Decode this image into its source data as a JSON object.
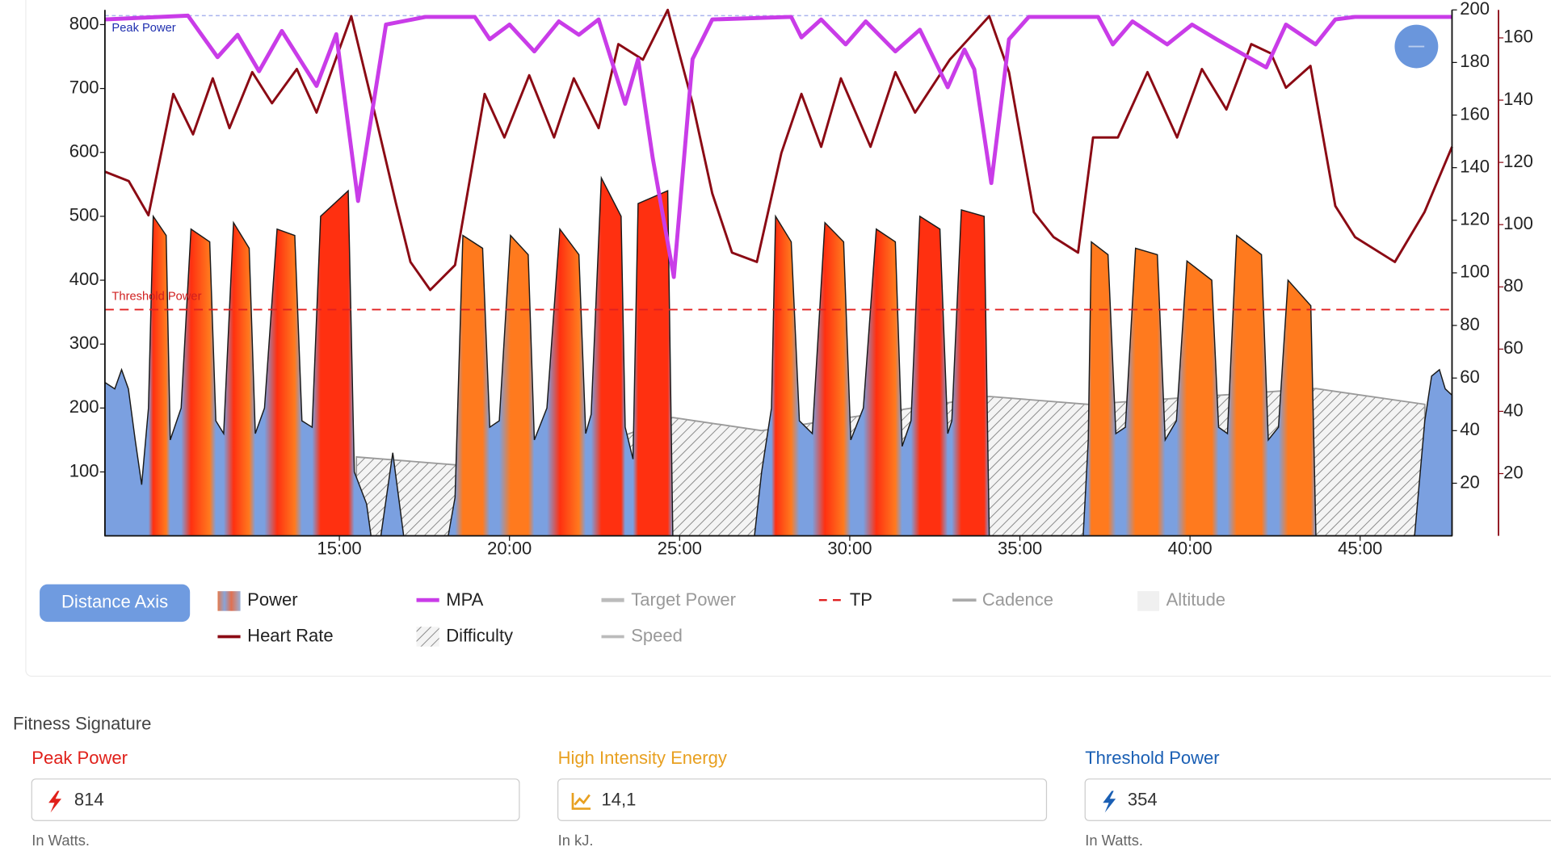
{
  "chart_data": {
    "type": "line",
    "xlim": [
      8.11,
      47.7
    ],
    "xticks": [
      {
        "value": 15,
        "label": "15:00"
      },
      {
        "value": 20,
        "label": "20:00"
      },
      {
        "value": 25,
        "label": "25:00"
      },
      {
        "value": 30,
        "label": "30:00"
      },
      {
        "value": 35,
        "label": "35:00"
      },
      {
        "value": 40,
        "label": "40:00"
      },
      {
        "value": 45,
        "label": "45:00"
      }
    ],
    "ylim": [
      0,
      823
    ],
    "yticks": [
      100,
      200,
      300,
      400,
      500,
      600,
      700,
      800
    ],
    "y2lim": [
      0,
      200
    ],
    "y2ticks": [
      20,
      40,
      60,
      80,
      100,
      120,
      140,
      160,
      180,
      200
    ],
    "y3lim": [
      0,
      169
    ],
    "y3ticks": [
      20,
      40,
      60,
      80,
      100,
      120,
      140,
      160
    ],
    "peak": {
      "label": "Peak Power",
      "value": 814,
      "color": "#aab4ee"
    },
    "threshold": {
      "name": "TP",
      "label": "Threshold Power",
      "value": 354,
      "color": "#e02020"
    },
    "series": [
      {
        "name": "Power",
        "kind": "area",
        "color": "#7ba0e0",
        "high_color": "#ff7a1e",
        "peak_color": "#ff3010",
        "x": [
          8.11,
          8.4,
          8.6,
          8.8,
          9.0,
          9.19,
          9.39,
          9.53,
          9.91,
          10.03,
          10.35,
          10.64,
          11.19,
          11.37,
          11.6,
          11.89,
          12.35,
          12.53,
          12.8,
          13.17,
          13.69,
          13.9,
          14.2,
          14.45,
          15.26,
          15.44,
          15.8,
          15.93,
          16.22,
          16.57,
          16.89,
          18.2,
          18.4,
          18.63,
          19.21,
          19.42,
          19.7,
          20.03,
          20.55,
          20.73,
          21.1,
          21.48,
          22.04,
          22.24,
          22.4,
          22.7,
          23.28,
          23.4,
          23.63,
          23.78,
          24.65,
          24.8,
          27.2,
          27.41,
          27.7,
          27.82,
          28.28,
          28.52,
          28.9,
          29.27,
          29.82,
          30.03,
          30.4,
          30.78,
          31.34,
          31.54,
          31.8,
          32.06,
          32.65,
          32.88,
          33.0,
          33.28,
          33.95,
          34.1,
          36.86,
          37.01,
          37.1,
          37.59,
          37.82,
          38.1,
          38.4,
          39.04,
          39.27,
          39.6,
          39.91,
          40.64,
          40.84,
          41.1,
          41.37,
          42.1,
          42.3,
          42.6,
          42.88,
          43.55,
          43.7,
          46.6,
          46.9,
          47.1,
          47.33,
          47.5,
          47.7
        ],
        "values": [
          240,
          230,
          260,
          230,
          150,
          80,
          200,
          500,
          470,
          150,
          200,
          480,
          460,
          180,
          160,
          490,
          450,
          160,
          200,
          480,
          470,
          180,
          170,
          500,
          540,
          100,
          50,
          0,
          0,
          130,
          0,
          0,
          60,
          470,
          450,
          170,
          180,
          470,
          440,
          150,
          200,
          480,
          440,
          160,
          190,
          560,
          500,
          170,
          120,
          520,
          540,
          0,
          0,
          100,
          200,
          500,
          460,
          180,
          160,
          490,
          460,
          150,
          200,
          480,
          460,
          140,
          180,
          500,
          480,
          160,
          180,
          510,
          500,
          0,
          0,
          150,
          460,
          440,
          160,
          170,
          450,
          440,
          150,
          180,
          430,
          400,
          170,
          160,
          470,
          440,
          150,
          170,
          400,
          360,
          0,
          0,
          180,
          250,
          260,
          230,
          220
        ]
      },
      {
        "name": "Heart Rate",
        "kind": "line",
        "axis": "y3",
        "color": "#8b0a14",
        "x": [
          8.11,
          8.81,
          9.39,
          10.12,
          10.7,
          11.28,
          11.77,
          12.44,
          13.02,
          13.75,
          14.33,
          15.35,
          16.08,
          16.66,
          17.09,
          17.67,
          18.4,
          19.27,
          19.85,
          20.58,
          21.31,
          21.89,
          22.62,
          23.2,
          23.92,
          24.65,
          25.38,
          25.96,
          26.54,
          27.27,
          27.99,
          28.58,
          29.16,
          29.74,
          30.61,
          31.34,
          31.92,
          32.94,
          33.52,
          34.1,
          34.68,
          35.41,
          35.99,
          36.71,
          37.15,
          37.88,
          38.75,
          39.62,
          40.35,
          41.07,
          41.8,
          42.38,
          42.82,
          43.54,
          44.27,
          44.85,
          46.02,
          46.89,
          47.7
        ],
        "values": [
          117,
          114,
          103,
          142,
          129,
          147,
          131,
          149,
          139,
          150,
          136,
          167,
          134,
          107,
          88,
          79,
          87,
          142,
          128,
          148,
          128,
          147,
          131,
          158,
          153,
          169,
          139,
          110,
          91,
          88,
          123,
          142,
          125,
          147,
          125,
          149,
          136,
          153,
          160,
          167,
          149,
          104,
          96,
          91,
          128,
          128,
          149,
          128,
          150,
          137,
          158,
          155,
          144,
          151,
          106,
          96,
          88,
          104,
          125
        ]
      },
      {
        "name": "MPA",
        "kind": "line",
        "color": "#c93ce8",
        "x": [
          8.11,
          10.55,
          11.42,
          12.01,
          12.64,
          13.31,
          14.33,
          14.91,
          15.55,
          16.37,
          17.53,
          18.98,
          19.42,
          20.0,
          20.73,
          21.45,
          22.04,
          22.62,
          23.4,
          23.78,
          24.21,
          24.83,
          25.38,
          25.96,
          28.28,
          28.58,
          29.16,
          29.88,
          30.47,
          31.34,
          32.06,
          32.88,
          33.37,
          33.66,
          34.16,
          34.68,
          35.26,
          37.3,
          37.73,
          38.31,
          39.33,
          40.06,
          40.78,
          42.24,
          42.82,
          43.69,
          44.27,
          44.85,
          47.7
        ],
        "values": [
          808,
          814,
          749,
          784,
          727,
          790,
          704,
          785,
          524,
          800,
          812,
          812,
          777,
          800,
          758,
          805,
          784,
          808,
          676,
          746,
          591,
          405,
          746,
          808,
          812,
          780,
          808,
          769,
          805,
          758,
          792,
          702,
          761,
          730,
          552,
          777,
          812,
          812,
          769,
          805,
          769,
          800,
          777,
          733,
          800,
          769,
          808,
          812,
          812
        ]
      },
      {
        "name": "Difficulty",
        "kind": "hatch",
        "axis": "y2",
        "color": "#9a9a9a",
        "x": [
          15.5,
          18.4,
          23.34,
          24.8,
          27.41,
          34.1,
          37.01,
          43.7,
          46.9
        ],
        "values": [
          30,
          27,
          38,
          45,
          40,
          53,
          50,
          56,
          50
        ]
      }
    ],
    "inactive_legend": [
      "Target Power",
      "Speed",
      "Cadence",
      "Altitude"
    ],
    "axis_button": "Distance Axis"
  },
  "fitness_signature": {
    "title": "Fitness Signature",
    "fields": [
      {
        "label": "Peak Power",
        "value": 814,
        "hint": "In Watts."
      },
      {
        "label": "High Intensity Energy",
        "value": "14,1",
        "hint": "In kJ."
      },
      {
        "label": "Threshold Power",
        "value": 354,
        "hint": "In Watts."
      }
    ]
  }
}
